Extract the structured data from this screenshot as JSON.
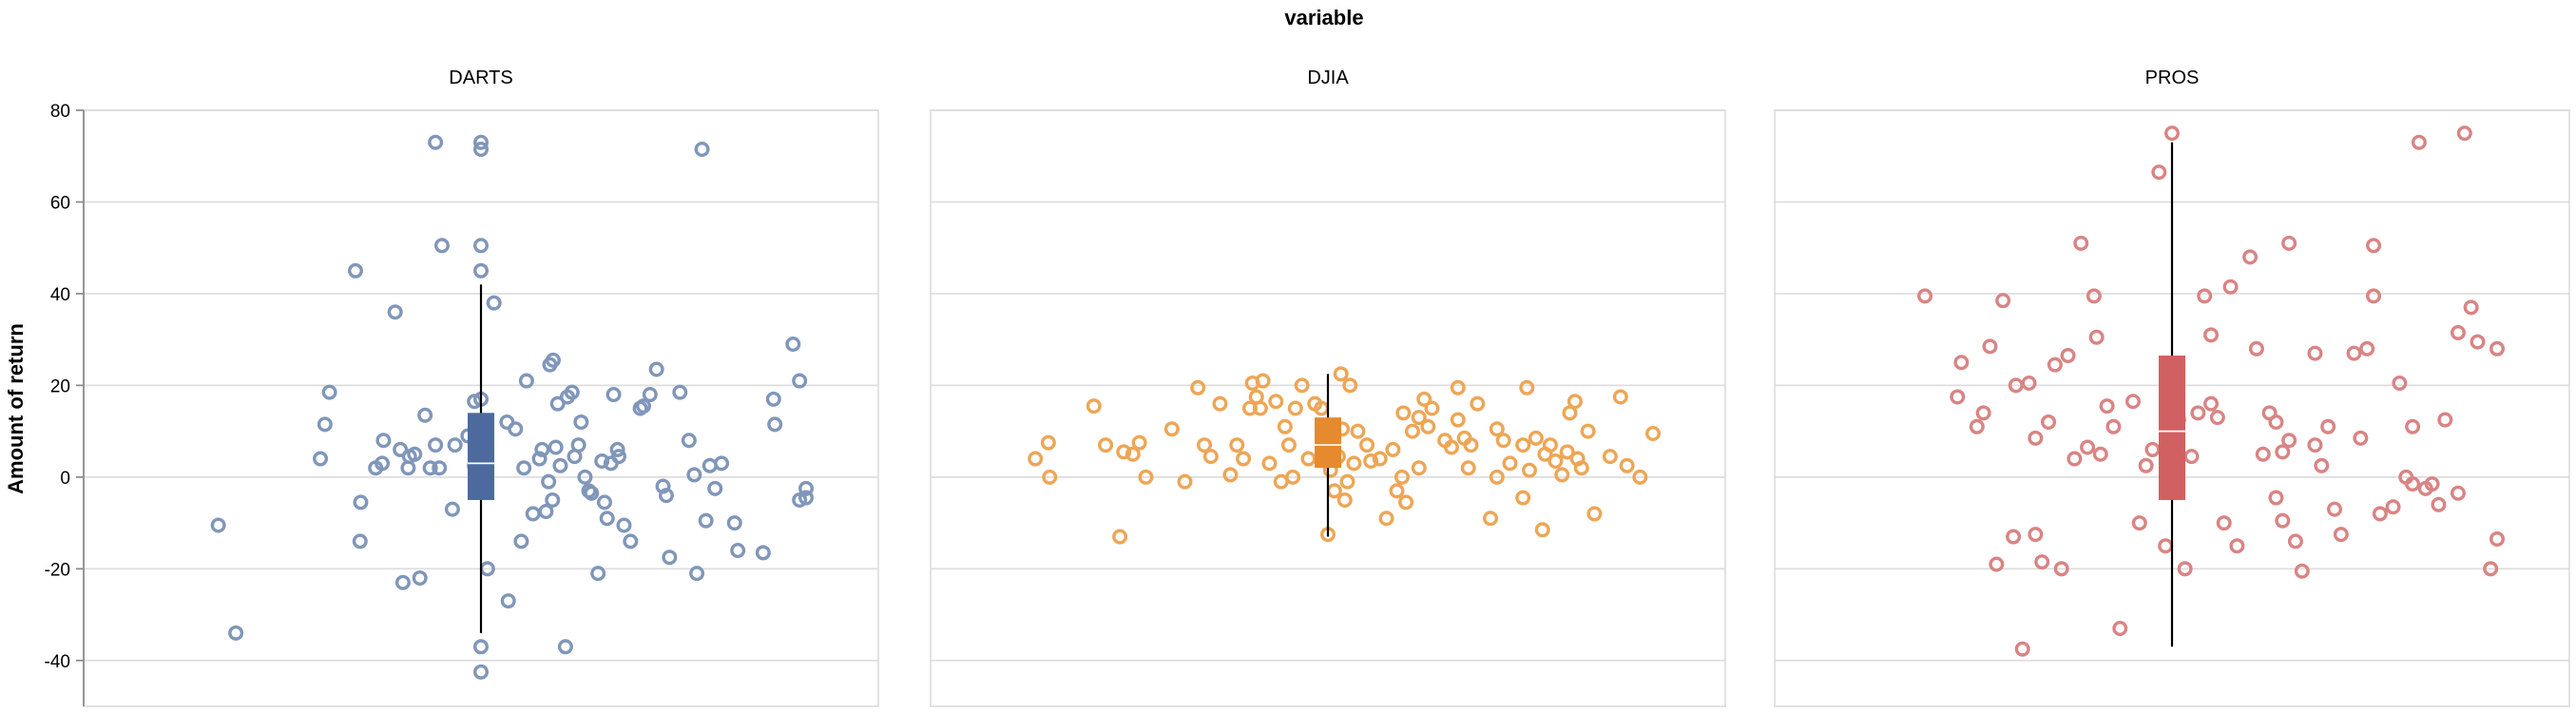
{
  "chart_data": {
    "type": "boxplot",
    "facet_title": "variable",
    "ylabel": "Amount of return",
    "ylim": [
      -50,
      80
    ],
    "yticks": [
      -40,
      -20,
      0,
      20,
      40,
      60,
      80
    ],
    "grid": true,
    "x_range": [
      0,
      1
    ],
    "panels": [
      {
        "name": "DARTS",
        "color": "#4c6a9e",
        "point_color": "#8096ba",
        "box": {
          "low": -34,
          "q1": -5,
          "median": 3,
          "q3": 14,
          "high": 42
        },
        "outliers": [
          [
            0.5,
            45
          ],
          [
            0.5,
            50.5
          ],
          [
            0.5,
            71.5
          ],
          [
            0.5,
            73
          ],
          [
            0.5,
            -37
          ],
          [
            0.5,
            -42.5
          ]
        ],
        "points": [
          [
            0.096,
            -10.5
          ],
          [
            0.123,
            -34
          ],
          [
            0.253,
            4
          ],
          [
            0.26,
            11.5
          ],
          [
            0.267,
            18.5
          ],
          [
            0.307,
            45
          ],
          [
            0.315,
            -5.5
          ],
          [
            0.314,
            -14
          ],
          [
            0.338,
            2
          ],
          [
            0.348,
            3
          ],
          [
            0.35,
            8
          ],
          [
            0.368,
            36
          ],
          [
            0.376,
            6
          ],
          [
            0.38,
            -23
          ],
          [
            0.388,
            2
          ],
          [
            0.39,
            4.5
          ],
          [
            0.398,
            5
          ],
          [
            0.406,
            -22
          ],
          [
            0.414,
            13.5
          ],
          [
            0.422,
            2
          ],
          [
            0.43,
            73
          ],
          [
            0.436,
            2
          ],
          [
            0.44,
            50.5
          ],
          [
            0.456,
            -7
          ],
          [
            0.46,
            7
          ],
          [
            0.48,
            9
          ],
          [
            0.49,
            2.5
          ],
          [
            0.49,
            16.5
          ],
          [
            0.5,
            17
          ],
          [
            0.502,
            5
          ],
          [
            0.51,
            -20
          ],
          [
            0.52,
            38
          ],
          [
            0.54,
            12
          ],
          [
            0.542,
            -27
          ],
          [
            0.553,
            10.5
          ],
          [
            0.562,
            -14
          ],
          [
            0.566,
            2
          ],
          [
            0.57,
            21
          ],
          [
            0.58,
            -8
          ],
          [
            0.59,
            4
          ],
          [
            0.594,
            6
          ],
          [
            0.6,
            -7.5
          ],
          [
            0.604,
            -1
          ],
          [
            0.606,
            24.5
          ],
          [
            0.61,
            -5
          ],
          [
            0.611,
            25.5
          ],
          [
            0.615,
            6.5
          ],
          [
            0.618,
            16
          ],
          [
            0.622,
            2.5
          ],
          [
            0.63,
            -37
          ],
          [
            0.633,
            17.5
          ],
          [
            0.64,
            18.5
          ],
          [
            0.644,
            4.5
          ],
          [
            0.65,
            7
          ],
          [
            0.654,
            12
          ],
          [
            0.66,
            0
          ],
          [
            0.666,
            -3
          ],
          [
            0.67,
            -3.5
          ],
          [
            0.68,
            -21
          ],
          [
            0.686,
            3.5
          ],
          [
            0.69,
            -5.5
          ],
          [
            0.694,
            -9
          ],
          [
            0.7,
            3
          ],
          [
            0.704,
            18
          ],
          [
            0.71,
            6
          ],
          [
            0.712,
            4.5
          ],
          [
            0.72,
            -10.5
          ],
          [
            0.73,
            -14
          ],
          [
            0.75,
            15.5
          ],
          [
            0.76,
            18
          ],
          [
            0.77,
            23.5
          ],
          [
            0.78,
            -2
          ],
          [
            0.785,
            -4
          ],
          [
            0.79,
            -17.5
          ],
          [
            0.806,
            18.5
          ],
          [
            0.82,
            8
          ],
          [
            0.828,
            0.5
          ],
          [
            0.832,
            -21
          ],
          [
            0.84,
            71.5
          ],
          [
            0.846,
            -9.5
          ],
          [
            0.852,
            2.5
          ],
          [
            0.86,
            -2.5
          ],
          [
            0.87,
            3
          ],
          [
            0.89,
            -10
          ],
          [
            0.895,
            -16
          ],
          [
            0.934,
            -16.5
          ],
          [
            0.95,
            17
          ],
          [
            0.952,
            11.5
          ],
          [
            0.98,
            29
          ],
          [
            0.99,
            21
          ],
          [
            0.99,
            -5
          ],
          [
            1.0,
            -2.5
          ],
          [
            1.0,
            -4.5
          ],
          [
            0.43,
            7
          ],
          [
            0.745,
            15
          ]
        ]
      },
      {
        "name": "DJIA",
        "color": "#e58a2f",
        "point_color": "#eda656",
        "box": {
          "low": -13,
          "q1": 2,
          "median": 7,
          "q3": 13,
          "high": 22.5
        },
        "outliers": [],
        "points": [
          [
            0.05,
            4
          ],
          [
            0.07,
            7.5
          ],
          [
            0.072,
            0
          ],
          [
            0.14,
            15.5
          ],
          [
            0.158,
            7
          ],
          [
            0.18,
            -13
          ],
          [
            0.186,
            5.5
          ],
          [
            0.2,
            5
          ],
          [
            0.21,
            7.5
          ],
          [
            0.22,
            0
          ],
          [
            0.26,
            10.5
          ],
          [
            0.28,
            -1
          ],
          [
            0.3,
            19.5
          ],
          [
            0.31,
            7
          ],
          [
            0.32,
            4.5
          ],
          [
            0.334,
            16
          ],
          [
            0.35,
            0.5
          ],
          [
            0.36,
            7
          ],
          [
            0.37,
            4
          ],
          [
            0.38,
            15
          ],
          [
            0.384,
            20.5
          ],
          [
            0.39,
            17.5
          ],
          [
            0.396,
            15
          ],
          [
            0.4,
            21
          ],
          [
            0.41,
            3
          ],
          [
            0.42,
            16.5
          ],
          [
            0.428,
            -1
          ],
          [
            0.434,
            11
          ],
          [
            0.44,
            7
          ],
          [
            0.446,
            0
          ],
          [
            0.45,
            15
          ],
          [
            0.46,
            20
          ],
          [
            0.47,
            4
          ],
          [
            0.48,
            16
          ],
          [
            0.49,
            15
          ],
          [
            0.5,
            -12.5
          ],
          [
            0.504,
            1.5
          ],
          [
            0.51,
            -3
          ],
          [
            0.516,
            4.5
          ],
          [
            0.52,
            22.5
          ],
          [
            0.522,
            10.5
          ],
          [
            0.526,
            -5
          ],
          [
            0.53,
            -1
          ],
          [
            0.534,
            20
          ],
          [
            0.54,
            3
          ],
          [
            0.546,
            10
          ],
          [
            0.56,
            7
          ],
          [
            0.566,
            3.5
          ],
          [
            0.58,
            4
          ],
          [
            0.59,
            -9
          ],
          [
            0.6,
            6
          ],
          [
            0.606,
            -3
          ],
          [
            0.614,
            0
          ],
          [
            0.616,
            14
          ],
          [
            0.62,
            -5.5
          ],
          [
            0.63,
            10
          ],
          [
            0.64,
            2
          ],
          [
            0.648,
            17
          ],
          [
            0.654,
            11
          ],
          [
            0.66,
            15
          ],
          [
            0.68,
            8
          ],
          [
            0.69,
            6.5
          ],
          [
            0.7,
            19.5
          ],
          [
            0.71,
            8.5
          ],
          [
            0.716,
            2
          ],
          [
            0.72,
            7
          ],
          [
            0.73,
            16
          ],
          [
            0.75,
            -9
          ],
          [
            0.76,
            10.5
          ],
          [
            0.76,
            0
          ],
          [
            0.77,
            8
          ],
          [
            0.78,
            3
          ],
          [
            0.8,
            7
          ],
          [
            0.8,
            -4.5
          ],
          [
            0.806,
            19.5
          ],
          [
            0.81,
            1.5
          ],
          [
            0.82,
            8.5
          ],
          [
            0.83,
            -11.5
          ],
          [
            0.834,
            5
          ],
          [
            0.842,
            7
          ],
          [
            0.85,
            3.5
          ],
          [
            0.86,
            0.5
          ],
          [
            0.868,
            5.5
          ],
          [
            0.872,
            14
          ],
          [
            0.88,
            16.5
          ],
          [
            0.884,
            4
          ],
          [
            0.89,
            2
          ],
          [
            0.9,
            10
          ],
          [
            0.91,
            -8
          ],
          [
            0.934,
            4.5
          ],
          [
            0.95,
            17.5
          ],
          [
            0.96,
            2.5
          ],
          [
            0.98,
            0
          ],
          [
            1.0,
            9.5
          ],
          [
            0.64,
            13
          ],
          [
            0.7,
            12.5
          ]
        ]
      },
      {
        "name": "PROS",
        "color": "#d06061",
        "point_color": "#d98484",
        "box": {
          "low": -37,
          "q1": -5,
          "median": 10,
          "q3": 26.5,
          "high": 73
        },
        "outliers": [
          [
            0.5,
            75
          ]
        ],
        "points": [
          [
            0.12,
            39.5
          ],
          [
            0.17,
            17.5
          ],
          [
            0.176,
            25
          ],
          [
            0.2,
            11
          ],
          [
            0.21,
            14
          ],
          [
            0.22,
            28.5
          ],
          [
            0.23,
            -19
          ],
          [
            0.24,
            38.5
          ],
          [
            0.256,
            -13
          ],
          [
            0.26,
            20
          ],
          [
            0.27,
            -37.5
          ],
          [
            0.28,
            20.5
          ],
          [
            0.29,
            8.5
          ],
          [
            0.29,
            -12.5
          ],
          [
            0.3,
            -18.5
          ],
          [
            0.31,
            12
          ],
          [
            0.32,
            24.5
          ],
          [
            0.33,
            -20
          ],
          [
            0.34,
            26.5
          ],
          [
            0.35,
            4
          ],
          [
            0.36,
            51
          ],
          [
            0.37,
            6.5
          ],
          [
            0.38,
            39.5
          ],
          [
            0.384,
            30.5
          ],
          [
            0.39,
            5
          ],
          [
            0.4,
            15.5
          ],
          [
            0.41,
            11
          ],
          [
            0.42,
            -33
          ],
          [
            0.44,
            16.5
          ],
          [
            0.45,
            -10
          ],
          [
            0.46,
            2.5
          ],
          [
            0.47,
            6
          ],
          [
            0.48,
            66.5
          ],
          [
            0.49,
            -15
          ],
          [
            0.5,
            9
          ],
          [
            0.51,
            12.5
          ],
          [
            0.52,
            -20
          ],
          [
            0.53,
            4.5
          ],
          [
            0.54,
            14
          ],
          [
            0.55,
            39.5
          ],
          [
            0.56,
            31
          ],
          [
            0.57,
            13
          ],
          [
            0.58,
            -10
          ],
          [
            0.59,
            41.5
          ],
          [
            0.6,
            -15
          ],
          [
            0.62,
            48
          ],
          [
            0.63,
            28
          ],
          [
            0.64,
            5
          ],
          [
            0.65,
            14
          ],
          [
            0.66,
            -4.5
          ],
          [
            0.66,
            12
          ],
          [
            0.67,
            -9.5
          ],
          [
            0.68,
            51
          ],
          [
            0.69,
            -14
          ],
          [
            0.7,
            -20.5
          ],
          [
            0.72,
            7
          ],
          [
            0.72,
            27
          ],
          [
            0.73,
            2.5
          ],
          [
            0.74,
            11
          ],
          [
            0.75,
            -7
          ],
          [
            0.76,
            -12.5
          ],
          [
            0.78,
            27
          ],
          [
            0.79,
            8.5
          ],
          [
            0.8,
            28
          ],
          [
            0.81,
            39.5
          ],
          [
            0.81,
            50.5
          ],
          [
            0.82,
            -8
          ],
          [
            0.84,
            -6.5
          ],
          [
            0.85,
            20.5
          ],
          [
            0.86,
            0
          ],
          [
            0.87,
            11
          ],
          [
            0.88,
            73
          ],
          [
            0.89,
            -2.5
          ],
          [
            0.9,
            -1.5
          ],
          [
            0.91,
            -6
          ],
          [
            0.92,
            12.5
          ],
          [
            0.94,
            -3.5
          ],
          [
            0.95,
            75
          ],
          [
            0.96,
            37
          ],
          [
            0.97,
            29.5
          ],
          [
            0.99,
            -20
          ],
          [
            1.0,
            28
          ],
          [
            1.0,
            -13.5
          ],
          [
            0.87,
            -1.5
          ],
          [
            0.94,
            31.5
          ],
          [
            0.67,
            5.5
          ],
          [
            0.68,
            8
          ],
          [
            0.56,
            16
          ]
        ]
      }
    ]
  }
}
